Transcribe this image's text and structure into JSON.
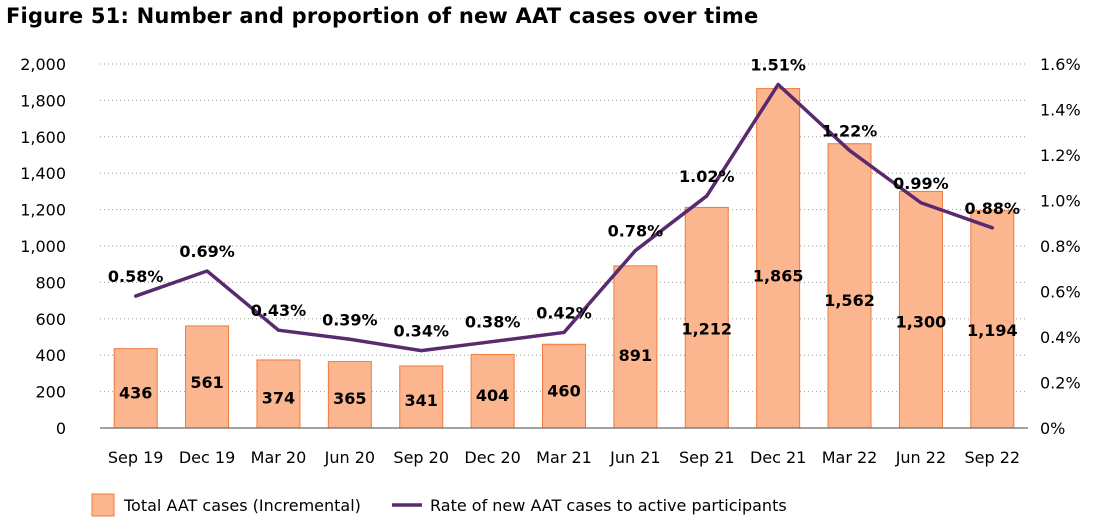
{
  "title": "Figure 51: Number and proportion of new AAT cases over time",
  "chart_data": {
    "type": "bar",
    "categories": [
      "Sep 19",
      "Dec 19",
      "Mar 20",
      "Jun 20",
      "Sep 20",
      "Dec 20",
      "Mar 21",
      "Jun 21",
      "Sep 21",
      "Dec 21",
      "Mar 22",
      "Jun 22",
      "Sep 22"
    ],
    "series": [
      {
        "name": "Total AAT cases (Incremental)",
        "type": "bar",
        "axis": "left",
        "values": [
          436,
          561,
          374,
          365,
          341,
          404,
          460,
          891,
          1212,
          1865,
          1562,
          1300,
          1194
        ],
        "labels": [
          "436",
          "561",
          "374",
          "365",
          "341",
          "404",
          "460",
          "891",
          "1,212",
          "1,865",
          "1,562",
          "1,300",
          "1,194"
        ],
        "color": "#FBB68F",
        "edge_color": "#F07A3C"
      },
      {
        "name": "Rate of new AAT cases to active participants",
        "type": "line",
        "axis": "right",
        "values": [
          0.58,
          0.69,
          0.43,
          0.39,
          0.34,
          0.38,
          0.42,
          0.78,
          1.02,
          1.51,
          1.22,
          0.99,
          0.88
        ],
        "labels": [
          "0.58%",
          "0.69%",
          "0.43%",
          "0.39%",
          "0.34%",
          "0.38%",
          "0.42%",
          "0.78%",
          "1.02%",
          "1.51%",
          "1.22%",
          "0.99%",
          "0.88%"
        ],
        "color": "#5A2A6E"
      }
    ],
    "y_left": {
      "min": 0,
      "max": 2000,
      "ticks": [
        0,
        200,
        400,
        600,
        800,
        1000,
        1200,
        1400,
        1600,
        1800,
        2000
      ],
      "tick_labels": [
        "0",
        "200",
        "400",
        "600",
        "800",
        "1,000",
        "1,200",
        "1,400",
        "1,600",
        "1,800",
        "2,000"
      ]
    },
    "y_right": {
      "min": 0,
      "max": 1.6,
      "ticks": [
        0,
        0.2,
        0.4,
        0.6,
        0.8,
        1.0,
        1.2,
        1.4,
        1.6
      ],
      "tick_labels": [
        "0%",
        "0.2%",
        "0.4%",
        "0.6%",
        "0.8%",
        "1.0%",
        "1.2%",
        "1.4%",
        "1.6%"
      ]
    },
    "grid": true,
    "legend_position": "bottom-left"
  }
}
